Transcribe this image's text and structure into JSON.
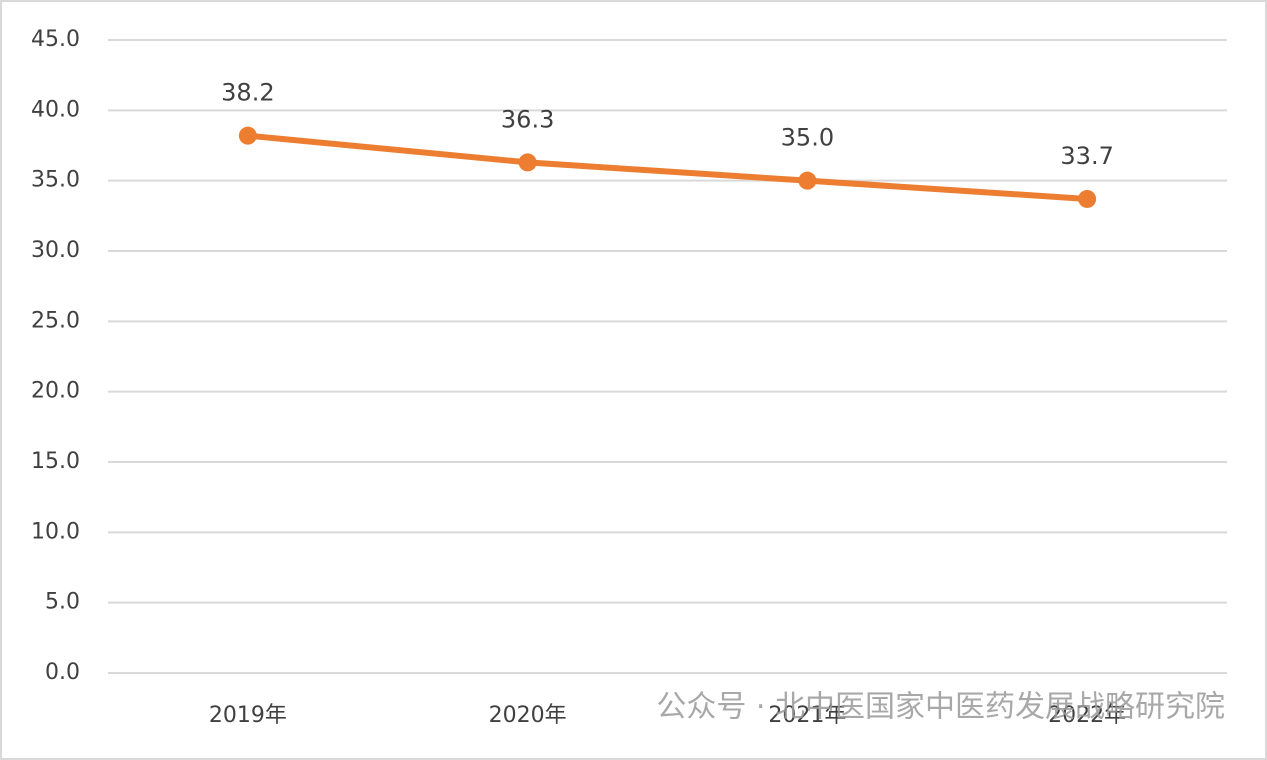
{
  "chart_data": {
    "type": "line",
    "categories": [
      "2019年",
      "2020年",
      "2021年",
      "2022年"
    ],
    "series": [
      {
        "color": "#ed7d31",
        "values": [
          38.2,
          36.3,
          35.0,
          33.7
        ],
        "value_labels": [
          "38.2",
          "36.3",
          "35.0",
          "33.7"
        ]
      }
    ],
    "ylim": [
      0,
      45
    ],
    "yticks": [
      {
        "value": 0,
        "label": "0.0"
      },
      {
        "value": 5,
        "label": "5.0"
      },
      {
        "value": 10,
        "label": "10.0"
      },
      {
        "value": 15,
        "label": "15.0"
      },
      {
        "value": 20,
        "label": "20.0"
      },
      {
        "value": 25,
        "label": "25.0"
      },
      {
        "value": 30,
        "label": "30.0"
      },
      {
        "value": 35,
        "label": "35.0"
      },
      {
        "value": 40,
        "label": "40.0"
      },
      {
        "value": 45,
        "label": "45.0"
      }
    ],
    "grid": true,
    "watermark": "公众号 · 北中医国家中医药发展战略研究院"
  }
}
